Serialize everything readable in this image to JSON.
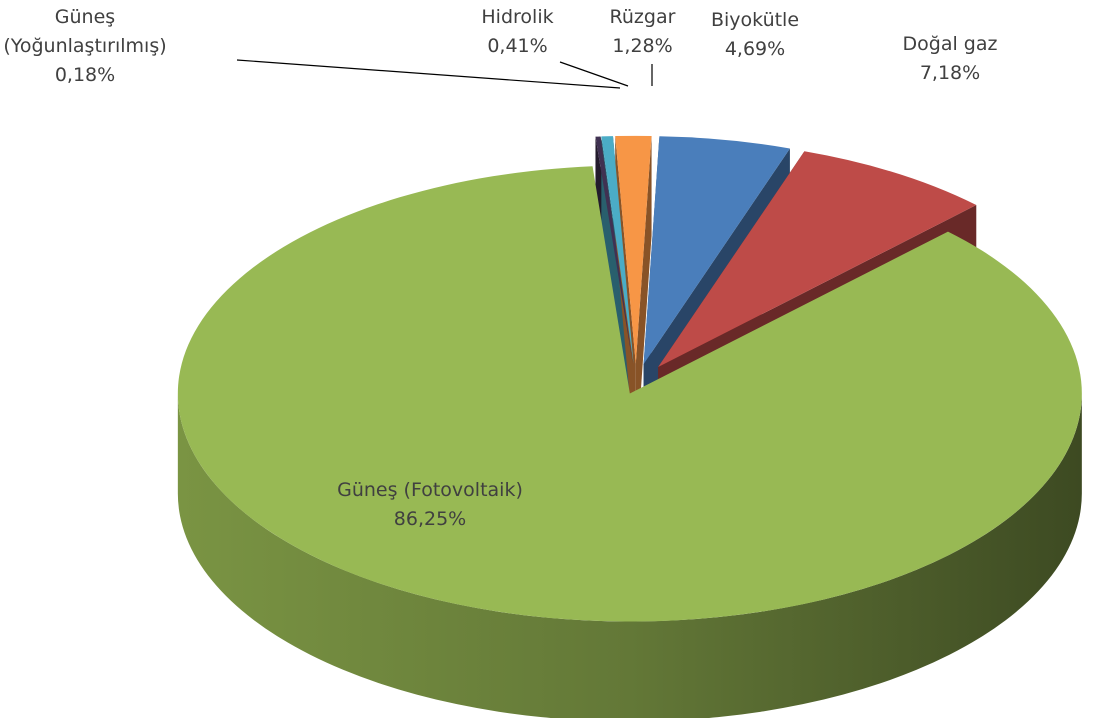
{
  "chart_data": {
    "type": "pie",
    "categories": [
      "Biyokütle",
      "Doğal gaz",
      "Güneş (Fotovoltaik)",
      "Güneş (Yoğunlaştırılmış)",
      "Hidrolik",
      "Rüzgar"
    ],
    "values": [
      4.69,
      7.18,
      86.25,
      0.18,
      0.41,
      1.28
    ],
    "value_labels": [
      "4,69%",
      "7,18%",
      "86,25%",
      "0,18%",
      "0,41%",
      "1,28%"
    ],
    "colors": [
      "#4a7ebb",
      "#be4b48",
      "#98b954",
      "#403152",
      "#4bacc6",
      "#f79646"
    ]
  }
}
